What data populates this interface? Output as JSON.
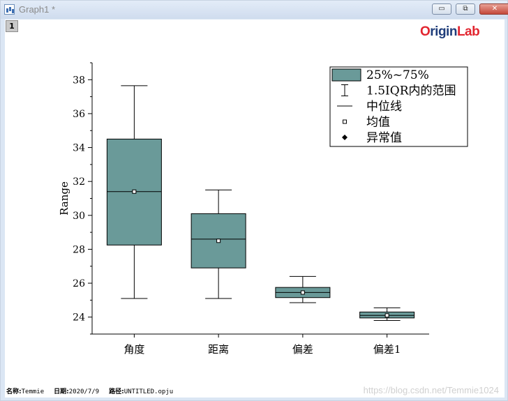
{
  "window": {
    "title": "Graph1 *",
    "min_label": "▭",
    "restore_label": "⧉",
    "close_label": "✕"
  },
  "layer_tab": "1",
  "logo": {
    "part1": "O",
    "part2": "rigin",
    "part3": "Lab"
  },
  "footer": {
    "name_label": "名称:",
    "name_value": "Temmie",
    "date_label": "日期:",
    "date_value": "2020/7/9",
    "path_label": "路径:",
    "path_value": "UNTITLED.opju"
  },
  "watermark": "https://blog.csdn.net/Temmie1024",
  "colors": {
    "box_fill": "#6a9a99",
    "stroke": "#000000"
  },
  "chart_data": {
    "type": "box",
    "ylabel": "Range",
    "ylim": [
      23,
      39
    ],
    "yticks": [
      24,
      26,
      28,
      30,
      32,
      34,
      36,
      38
    ],
    "categories": [
      "角度",
      "距离",
      "偏差",
      "偏差1"
    ],
    "boxes": [
      {
        "name": "角度",
        "whisker_low": 25.1,
        "q1": 28.25,
        "median": 31.4,
        "q3": 34.5,
        "whisker_high": 37.65,
        "mean": 31.4
      },
      {
        "name": "距离",
        "whisker_low": 25.1,
        "q1": 26.9,
        "median": 28.6,
        "q3": 30.1,
        "whisker_high": 31.5,
        "mean": 28.5
      },
      {
        "name": "偏差",
        "whisker_low": 24.85,
        "q1": 25.15,
        "median": 25.45,
        "q3": 25.75,
        "whisker_high": 26.4,
        "mean": 25.45
      },
      {
        "name": "偏差1",
        "whisker_low": 23.8,
        "q1": 23.95,
        "median": 24.1,
        "q3": 24.3,
        "whisker_high": 24.55,
        "mean": 24.1
      }
    ],
    "legend": {
      "placement": "top-right",
      "entries": [
        "25%~75%",
        "1.5IQR内的范围",
        "中位线",
        "均值",
        "异常值"
      ]
    }
  }
}
